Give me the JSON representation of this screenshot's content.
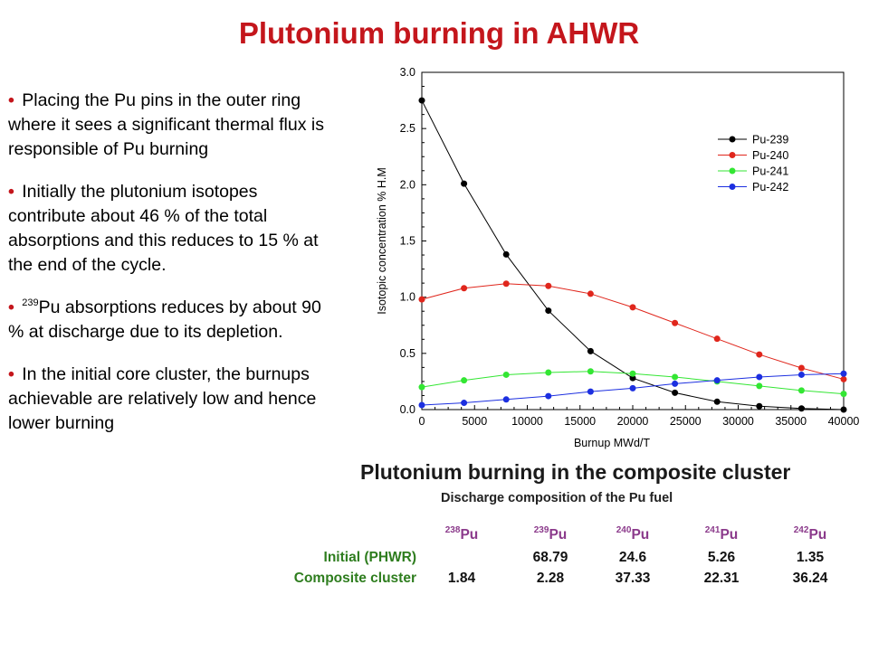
{
  "title": "Plutonium burning in AHWR",
  "bullets": [
    {
      "pre": "",
      "sup": "",
      "text": "Placing the Pu pins in the outer ring where it sees a significant thermal flux is responsible of Pu burning"
    },
    {
      "pre": "",
      "sup": "",
      "text": "Initially  the plutonium isotopes contribute about 46 % of the total absorptions and this reduces to 15 % at the end of the cycle."
    },
    {
      "pre": "",
      "sup": "239",
      "text": "Pu absorptions reduces by about 90 % at discharge due to its depletion."
    },
    {
      "pre": "",
      "sup": "",
      "text": "In the initial core cluster, the burnups achievable are relatively low and hence lower burning"
    }
  ],
  "chart_data": {
    "type": "line",
    "xlabel": "Burnup   MWd/T",
    "ylabel": "Isotopic concentration   % H.M",
    "xlim": [
      0,
      40000
    ],
    "ylim": [
      0,
      3.0
    ],
    "xticks": [
      0,
      5000,
      10000,
      15000,
      20000,
      25000,
      30000,
      35000,
      40000
    ],
    "yticks": [
      0.0,
      0.5,
      1.0,
      1.5,
      2.0,
      2.5,
      3.0
    ],
    "ytick_labels": [
      "0.0",
      "0.5",
      "1.0",
      "1.5",
      "2.0",
      "2.5",
      "3.0"
    ],
    "legend_position": "top-right",
    "grid": false,
    "x": [
      0,
      4000,
      8000,
      12000,
      16000,
      20000,
      24000,
      28000,
      32000,
      36000,
      40000
    ],
    "series": [
      {
        "name": "Pu-239",
        "color": "#000000",
        "values": [
          2.75,
          2.01,
          1.38,
          0.88,
          0.52,
          0.28,
          0.15,
          0.07,
          0.03,
          0.01,
          0.0
        ]
      },
      {
        "name": "Pu-240",
        "color": "#e0261c",
        "values": [
          0.98,
          1.08,
          1.12,
          1.1,
          1.03,
          0.91,
          0.77,
          0.63,
          0.49,
          0.37,
          0.27
        ]
      },
      {
        "name": "Pu-241",
        "color": "#33e633",
        "values": [
          0.2,
          0.26,
          0.31,
          0.33,
          0.34,
          0.32,
          0.29,
          0.25,
          0.21,
          0.17,
          0.14
        ]
      },
      {
        "name": "Pu-242",
        "color": "#1c2fe0",
        "values": [
          0.04,
          0.06,
          0.09,
          0.12,
          0.16,
          0.19,
          0.23,
          0.26,
          0.29,
          0.31,
          0.32
        ]
      }
    ]
  },
  "composite": {
    "title": "Plutonium burning in the composite cluster",
    "caption": "Discharge composition of the Pu fuel",
    "isotopes": [
      {
        "sup": "238",
        "el": "Pu"
      },
      {
        "sup": "239",
        "el": "Pu"
      },
      {
        "sup": "240",
        "el": "Pu"
      },
      {
        "sup": "241",
        "el": "Pu"
      },
      {
        "sup": "242",
        "el": "Pu"
      }
    ],
    "rows": [
      {
        "label": "Initial (PHWR)",
        "values": [
          "",
          "68.79",
          "24.6",
          "5.26",
          "1.35"
        ]
      },
      {
        "label": "Composite cluster",
        "values": [
          "1.84",
          "2.28",
          "37.33",
          "22.31",
          "36.24"
        ]
      }
    ]
  }
}
